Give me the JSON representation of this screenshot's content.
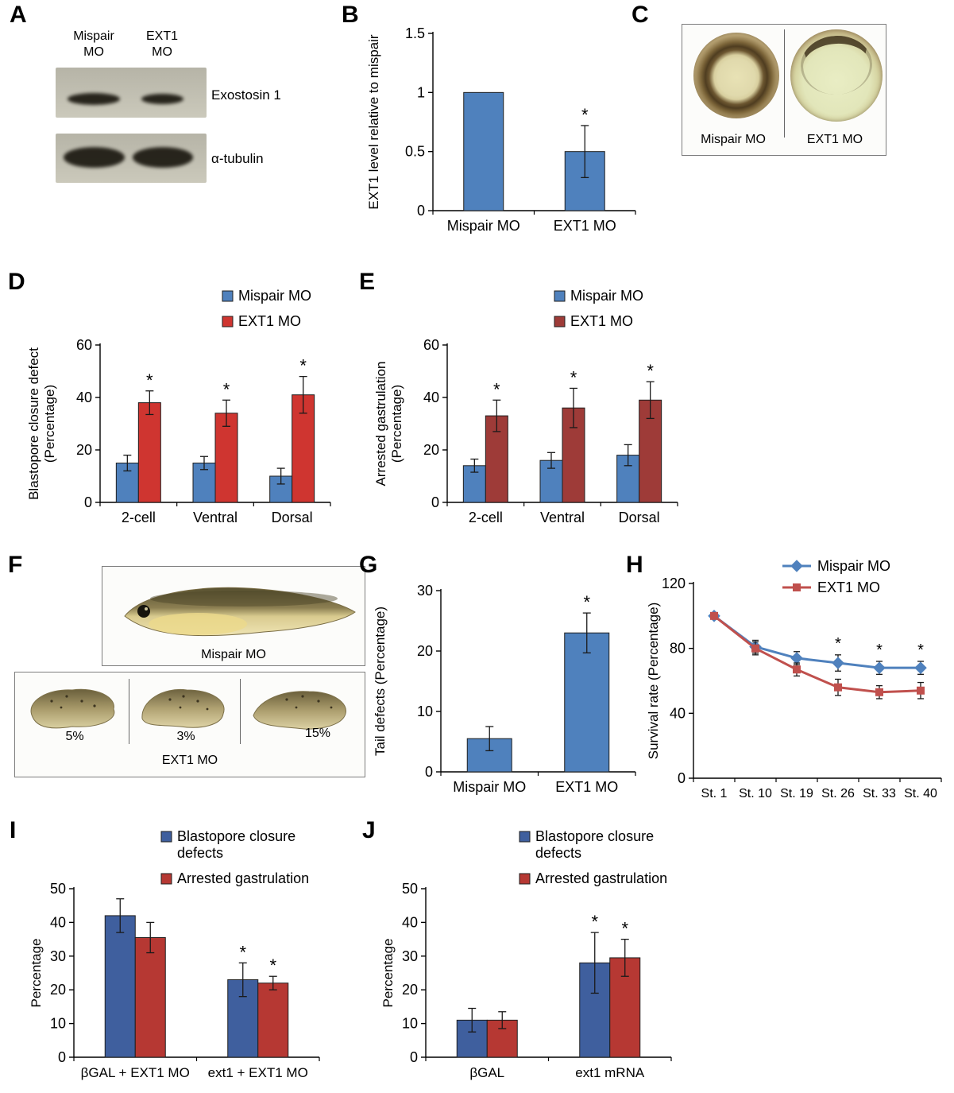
{
  "panels": {
    "A": {
      "label": "A",
      "lane_labels": [
        "Mispair MO",
        "EXT1 MO"
      ],
      "band_labels": [
        "Exostosin 1",
        "α-tubulin"
      ]
    },
    "B": {
      "label": "B"
    },
    "C": {
      "label": "C",
      "image_labels": [
        "Mispair MO",
        "EXT1 MO"
      ]
    },
    "D": {
      "label": "D"
    },
    "E": {
      "label": "E"
    },
    "F": {
      "label": "F",
      "top_caption": "Mispair MO",
      "percent_labels": [
        "5%",
        "3%",
        "15%"
      ],
      "bottom_caption": "EXT1 MO"
    },
    "G": {
      "label": "G"
    },
    "H": {
      "label": "H"
    },
    "I": {
      "label": "I"
    },
    "J": {
      "label": "J"
    }
  },
  "colors": {
    "bar_blue": "#4f81bd",
    "bar_blue_dark": "#3f5f9e",
    "bar_red_bright": "#cf3530",
    "bar_red_dark": "#9e3b38",
    "bar_red_brick": "#b63833",
    "line_blue": "#4f81bd",
    "line_red": "#c0504d"
  },
  "chart_data": [
    {
      "panel": "B",
      "type": "bar",
      "ylabel": "EXT1 level relative to mispair",
      "categories": [
        "Mispair MO",
        "EXT1 MO"
      ],
      "values": [
        1.0,
        0.5
      ],
      "errors": [
        0,
        0.22
      ],
      "sig": [
        false,
        true
      ],
      "bar_color": "#4f81bd",
      "ylim": [
        0,
        1.5
      ],
      "yticks": [
        0,
        0.5,
        1,
        1.5
      ]
    },
    {
      "panel": "D",
      "type": "grouped-bar",
      "ylabel": "Blastopore closure defect\n(Percentage)",
      "categories": [
        "2-cell",
        "Ventral",
        "Dorsal"
      ],
      "series": [
        {
          "name": "Mispair MO",
          "color": "#4f81bd",
          "values": [
            15,
            15,
            10
          ],
          "errors": [
            3,
            2.5,
            3
          ],
          "sig": [
            false,
            false,
            false
          ]
        },
        {
          "name": "EXT1 MO",
          "color": "#cf3530",
          "values": [
            38,
            34,
            41
          ],
          "errors": [
            4.5,
            5,
            7
          ],
          "sig": [
            true,
            true,
            true
          ]
        }
      ],
      "ylim": [
        0,
        60
      ],
      "yticks": [
        0,
        20,
        40,
        60
      ],
      "legend_position": "top"
    },
    {
      "panel": "E",
      "type": "grouped-bar",
      "ylabel": "Arrested gastrulation\n(Percentage)",
      "categories": [
        "2-cell",
        "Ventral",
        "Dorsal"
      ],
      "series": [
        {
          "name": "Mispair MO",
          "color": "#4f81bd",
          "values": [
            14,
            16,
            18
          ],
          "errors": [
            2.5,
            3,
            4
          ],
          "sig": [
            false,
            false,
            false
          ]
        },
        {
          "name": "EXT1 MO",
          "color": "#9e3b38",
          "values": [
            33,
            36,
            39
          ],
          "errors": [
            6,
            7.5,
            7
          ],
          "sig": [
            true,
            true,
            true
          ]
        }
      ],
      "ylim": [
        0,
        60
      ],
      "yticks": [
        0,
        20,
        40,
        60
      ],
      "legend_position": "top"
    },
    {
      "panel": "G",
      "type": "bar",
      "ylabel": "Tail defects (Percentage)",
      "categories": [
        "Mispair MO",
        "EXT1 MO"
      ],
      "values": [
        5.5,
        23
      ],
      "errors": [
        2,
        3.3
      ],
      "sig": [
        false,
        true
      ],
      "bar_color": "#4f81bd",
      "ylim": [
        0,
        30
      ],
      "yticks": [
        0,
        10,
        20,
        30
      ]
    },
    {
      "panel": "H",
      "type": "line",
      "ylabel": "Survival rate (Percentage)",
      "x": [
        "St. 1",
        "St. 10",
        "St. 19",
        "St. 26",
        "St. 33",
        "St. 40"
      ],
      "series": [
        {
          "name": "Mispair MO",
          "color": "#4f81bd",
          "marker": "diamond",
          "values": [
            100,
            81,
            74,
            71,
            68,
            68
          ],
          "errors": [
            0,
            4,
            4,
            5,
            4,
            4
          ]
        },
        {
          "name": "EXT1 MO",
          "color": "#c0504d",
          "marker": "square",
          "values": [
            100,
            80,
            67,
            56,
            53,
            54
          ],
          "errors": [
            0,
            4,
            4,
            5,
            4,
            5
          ]
        }
      ],
      "sig_points": [
        "St. 26",
        "St. 33",
        "St. 40"
      ],
      "ylim": [
        0,
        120
      ],
      "yticks": [
        0,
        40,
        80,
        120
      ],
      "legend_position": "top-right"
    },
    {
      "panel": "I",
      "type": "grouped-bar",
      "ylabel": "Percentage",
      "categories": [
        "βGAL + EXT1 MO",
        "ext1 + EXT1 MO"
      ],
      "series": [
        {
          "name": "Blastopore closure defects",
          "legend_lines": [
            "Blastopore closure",
            "defects"
          ],
          "color": "#3f5f9e",
          "values": [
            42,
            23
          ],
          "errors": [
            5,
            5
          ],
          "sig": [
            false,
            true
          ]
        },
        {
          "name": "Arrested gastrulation",
          "color": "#b63833",
          "values": [
            35.5,
            22
          ],
          "errors": [
            4.5,
            2
          ],
          "sig": [
            false,
            true
          ]
        }
      ],
      "ylim": [
        0,
        50
      ],
      "yticks": [
        0,
        10,
        20,
        30,
        40,
        50
      ],
      "legend_position": "top"
    },
    {
      "panel": "J",
      "type": "grouped-bar",
      "ylabel": "Percentage",
      "categories": [
        "βGAL",
        "ext1 mRNA"
      ],
      "series": [
        {
          "name": "Blastopore closure defects",
          "legend_lines": [
            "Blastopore closure",
            "defects"
          ],
          "color": "#3f5f9e",
          "values": [
            11,
            28
          ],
          "errors": [
            3.5,
            9
          ],
          "sig": [
            false,
            true
          ]
        },
        {
          "name": "Arrested gastrulation",
          "color": "#b63833",
          "values": [
            11,
            29.5
          ],
          "errors": [
            2.5,
            5.5
          ],
          "sig": [
            false,
            true
          ]
        }
      ],
      "ylim": [
        0,
        50
      ],
      "yticks": [
        0,
        10,
        20,
        30,
        40,
        50
      ],
      "legend_position": "top"
    }
  ]
}
